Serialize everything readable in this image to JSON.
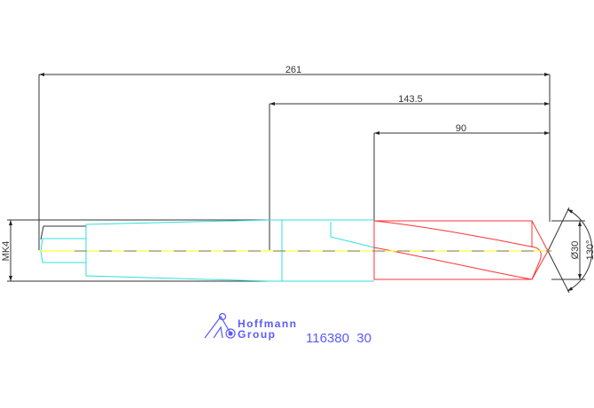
{
  "dimensions": {
    "overall_length": "261",
    "shank_to_tip": "143.5",
    "flute_length": "90",
    "diameter": "Ø30",
    "point_angle": "130°",
    "taper": "MK4"
  },
  "logo": {
    "line1": "Hoffmann",
    "line2": "Group"
  },
  "part_number": "116380  30",
  "colors": {
    "dimension": "#333333",
    "shank": "#33dddd",
    "flute": "#ff3333",
    "centerline": "#ffff33",
    "logo": "#5a5aff"
  }
}
